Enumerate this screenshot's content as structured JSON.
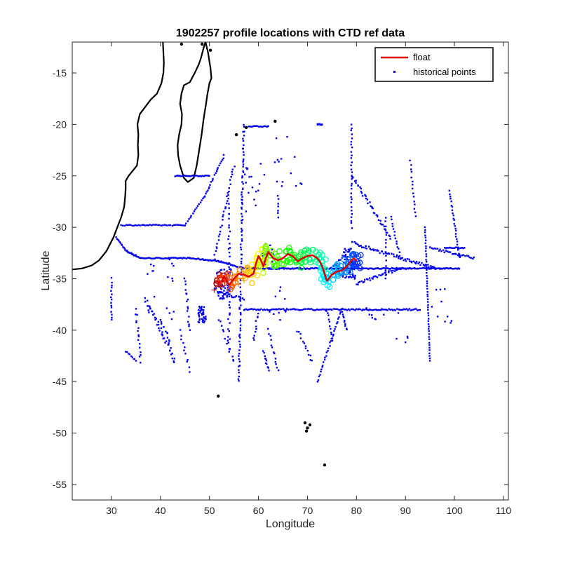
{
  "chart_data": {
    "type": "scatter",
    "title": "1902257 profile locations with CTD ref data",
    "xlabel": "Longitude",
    "ylabel": "Latitude",
    "xlim": [
      22,
      111
    ],
    "ylim": [
      -56.5,
      -12
    ],
    "xticks": [
      30,
      40,
      50,
      60,
      70,
      80,
      90,
      100,
      110
    ],
    "yticks": [
      -15,
      -20,
      -25,
      -30,
      -35,
      -40,
      -45,
      -50,
      -55
    ],
    "grid": false,
    "legend": {
      "position": "top-right",
      "entries": [
        {
          "label": "float",
          "color": "#e00000",
          "marker": "line"
        },
        {
          "label": "historical points",
          "color": "#0000ee",
          "marker": "dot"
        }
      ]
    },
    "colors": {
      "coast": "#000000",
      "float": "#e00000",
      "historical": "#0000ee"
    },
    "series": [
      {
        "name": "float",
        "kind": "line",
        "x": [
          51.5,
          52.5,
          53.0,
          54.0,
          55.0,
          56.0,
          57.0,
          58.0,
          59.0,
          59.5,
          60.0,
          60.5,
          61.0,
          61.5,
          62.0,
          63.0,
          64.0,
          65.0,
          66.0,
          67.0,
          68.0,
          69.0,
          70.0,
          71.0,
          72.0,
          72.5,
          73.0,
          73.5,
          73.8,
          74.0,
          75.0,
          76.0,
          77.0,
          78.0,
          79.0,
          79.5,
          80.0
        ],
        "y": [
          -35.5,
          -35.2,
          -34.8,
          -35.6,
          -35.0,
          -34.5,
          -34.6,
          -34.8,
          -34.5,
          -33.5,
          -32.8,
          -33.2,
          -33.8,
          -33.0,
          -32.4,
          -33.0,
          -33.2,
          -33.0,
          -32.6,
          -32.8,
          -33.3,
          -33.0,
          -32.8,
          -32.7,
          -33.0,
          -33.3,
          -33.8,
          -34.5,
          -35.0,
          -35.2,
          -34.6,
          -34.3,
          -34.2,
          -33.8,
          -33.2,
          -33.0,
          -33.3
        ]
      },
      {
        "name": "historical points",
        "kind": "scatter",
        "x": [],
        "y": []
      }
    ]
  }
}
